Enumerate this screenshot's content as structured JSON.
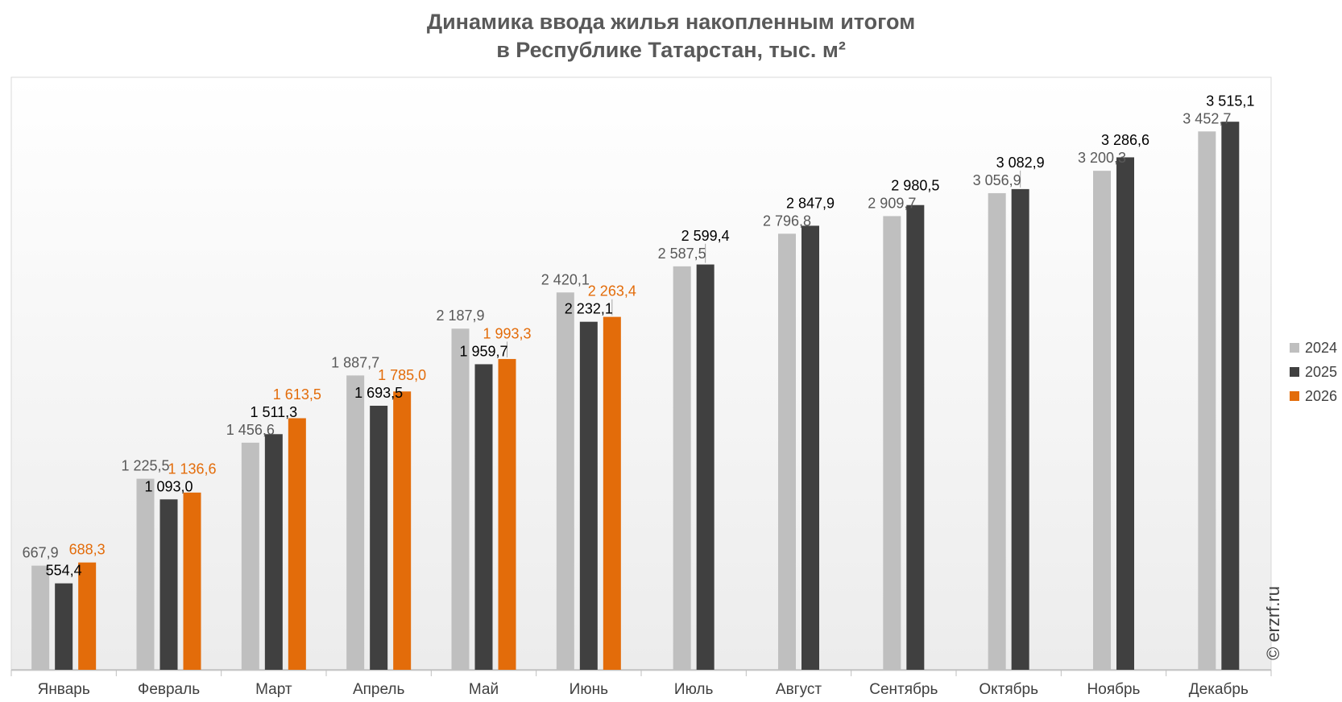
{
  "chart_data": {
    "type": "bar",
    "title_lines": [
      "Динамика ввода жилья накопленным итогом",
      "в Республике Татарстан, тыс. м²"
    ],
    "categories": [
      "Январь",
      "Февраль",
      "Март",
      "Апрель",
      "Май",
      "Июнь",
      "Июль",
      "Август",
      "Сентябрь",
      "Октябрь",
      "Ноябрь",
      "Декабрь"
    ],
    "series": [
      {
        "name": "2024",
        "color": "#bfbfbf",
        "label_color": "#595959",
        "values": [
          667.9,
          1225.5,
          1456.6,
          1887.7,
          2187.9,
          2420.1,
          2587.5,
          2796.8,
          2909.7,
          3056.9,
          3200.3,
          3452.7
        ],
        "labels": [
          "667,9",
          "1 225,5",
          "1 456,6",
          "1 887,7",
          "2 187,9",
          "2 420,1",
          "2 587,5",
          "2 796,8",
          "2 909,7",
          "3 056,9",
          "3 200,3",
          "3 452,7"
        ]
      },
      {
        "name": "2025",
        "color": "#404040",
        "label_color": "#000000",
        "values": [
          554.4,
          1093.0,
          1511.3,
          1693.5,
          1959.7,
          2232.1,
          2599.4,
          2847.9,
          2980.5,
          3082.9,
          3286.6,
          3515.1
        ],
        "labels": [
          "554,4",
          "1 093,0",
          "1 511,3",
          "1 693,5",
          "1 959,7",
          "2 232,1",
          "2 599,4",
          "2 847,9",
          "2 980,5",
          "3 082,9",
          "3 286,6",
          "3 515,1"
        ]
      },
      {
        "name": "2026",
        "color": "#e36c0a",
        "label_color": "#e36c0a",
        "values": [
          688.3,
          1136.6,
          1613.5,
          1785.0,
          1993.3,
          2263.4,
          null,
          null,
          null,
          null,
          null,
          null
        ],
        "labels": [
          "688,3",
          "1 136,6",
          "1 613,5",
          "1 785,0",
          "1 993,3",
          "2 263,4",
          "",
          "",
          "",
          "",
          "",
          ""
        ]
      }
    ],
    "ylim": [
      0,
      3800
    ],
    "legend_position": "right",
    "grid": false
  },
  "copyright": "© erzrf.ru"
}
